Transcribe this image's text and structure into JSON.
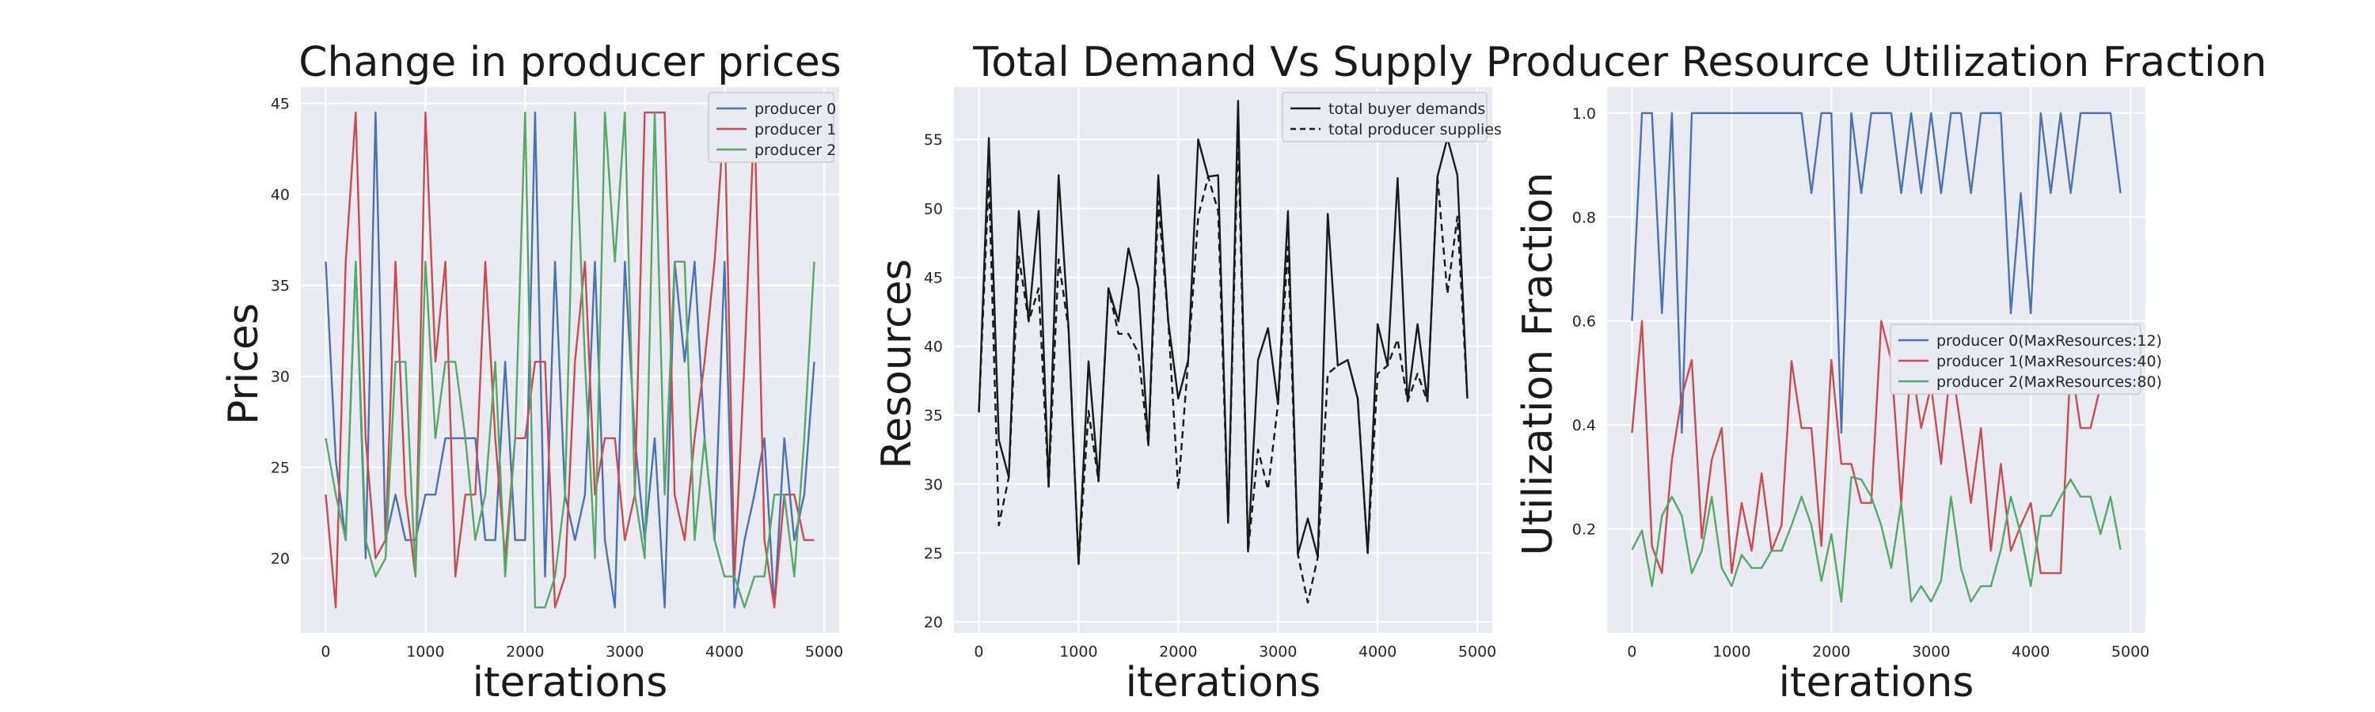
{
  "chart_data": [
    {
      "type": "line",
      "title": "Change in producer prices",
      "xlabel": "iterations",
      "ylabel": "Prices",
      "xlim": [
        -250,
        5150
      ],
      "ylim": [
        15.9,
        45.9
      ],
      "xticks": [
        0,
        1000,
        2000,
        3000,
        4000,
        5000
      ],
      "yticks": [
        20,
        25,
        30,
        35,
        40,
        45
      ],
      "grid": true,
      "legend_position": "top-right",
      "x": [
        0,
        100,
        200,
        300,
        400,
        500,
        600,
        700,
        800,
        900,
        1000,
        1100,
        1200,
        1300,
        1400,
        1500,
        1600,
        1700,
        1800,
        1900,
        2000,
        2100,
        2200,
        2300,
        2400,
        2500,
        2600,
        2700,
        2800,
        2900,
        3000,
        3100,
        3200,
        3300,
        3400,
        3500,
        3600,
        3700,
        3800,
        3900,
        4000,
        4100,
        4200,
        4300,
        4400,
        4500,
        4600,
        4700,
        4800,
        4900
      ],
      "series": [
        {
          "name": "producer 0",
          "color": "#4c72b0",
          "values": [
            36.3,
            25.4,
            21.0,
            36.3,
            20.0,
            44.5,
            21.0,
            23.5,
            21.0,
            21.0,
            23.5,
            23.5,
            26.6,
            26.6,
            26.6,
            26.6,
            21.0,
            21.0,
            30.8,
            21.0,
            21.0,
            44.5,
            19.0,
            36.3,
            23.5,
            21.0,
            23.5,
            36.3,
            21.0,
            17.3,
            36.3,
            26.6,
            21.0,
            26.6,
            17.3,
            36.3,
            30.8,
            36.3,
            26.6,
            21.0,
            36.3,
            17.3,
            21.0,
            23.5,
            26.6,
            17.3,
            26.6,
            21.0,
            23.5,
            30.8
          ]
        },
        {
          "name": "producer 1",
          "color": "#c44e52",
          "values": [
            23.5,
            17.3,
            36.3,
            44.5,
            26.6,
            20.0,
            21.0,
            36.3,
            23.5,
            19.0,
            44.5,
            30.8,
            36.3,
            19.0,
            23.5,
            23.5,
            36.3,
            26.6,
            20.0,
            26.6,
            26.6,
            30.8,
            30.8,
            17.3,
            19.0,
            30.8,
            36.3,
            23.5,
            26.6,
            26.6,
            21.0,
            23.5,
            44.5,
            44.5,
            44.5,
            23.5,
            21.0,
            26.6,
            30.8,
            36.3,
            44.5,
            19.0,
            30.8,
            44.5,
            21.0,
            17.3,
            23.5,
            23.5,
            21.0,
            21.0
          ]
        },
        {
          "name": "producer 2",
          "color": "#55a868",
          "values": [
            26.6,
            23.5,
            21.0,
            36.3,
            21.0,
            19.0,
            20.0,
            30.8,
            30.8,
            19.0,
            36.3,
            26.6,
            30.8,
            30.8,
            26.6,
            21.0,
            23.5,
            30.8,
            19.0,
            26.6,
            44.5,
            17.3,
            17.3,
            19.0,
            23.5,
            44.5,
            30.8,
            20.0,
            44.5,
            36.3,
            44.5,
            23.5,
            20.0,
            44.5,
            23.5,
            36.3,
            36.3,
            21.0,
            26.6,
            21.0,
            19.0,
            19.0,
            17.3,
            19.0,
            19.0,
            23.5,
            23.5,
            19.0,
            26.6,
            36.3
          ]
        }
      ]
    },
    {
      "type": "line",
      "title": "Total Demand Vs Supply",
      "xlabel": "iterations",
      "ylabel": "Resources",
      "xlim": [
        -250,
        5150
      ],
      "ylim": [
        19.2,
        58.8
      ],
      "xticks": [
        0,
        1000,
        2000,
        3000,
        4000,
        5000
      ],
      "yticks": [
        20,
        25,
        30,
        35,
        40,
        45,
        50,
        55
      ],
      "grid": true,
      "legend_position": "top-right",
      "x": [
        0,
        100,
        200,
        300,
        400,
        500,
        600,
        700,
        800,
        900,
        1000,
        1100,
        1200,
        1300,
        1400,
        1500,
        1600,
        1700,
        1800,
        1900,
        2000,
        2100,
        2200,
        2300,
        2400,
        2500,
        2600,
        2700,
        2800,
        2900,
        3000,
        3100,
        3200,
        3300,
        3400,
        3500,
        3600,
        3700,
        3800,
        3900,
        4000,
        4100,
        4200,
        4300,
        4400,
        4500,
        4600,
        4700,
        4800,
        4900
      ],
      "series": [
        {
          "name": "total buyer demands",
          "color": "#1a1a1a",
          "style": "solid",
          "values": [
            35.2,
            55.1,
            33.2,
            30.5,
            49.8,
            41.8,
            49.8,
            29.8,
            52.4,
            41.2,
            24.2,
            38.9,
            30.2,
            44.2,
            41.8,
            47.1,
            44.2,
            32.8,
            52.4,
            41.8,
            36.2,
            39.0,
            55.0,
            52.3,
            52.4,
            27.2,
            57.8,
            25.1,
            39.0,
            41.3,
            35.8,
            49.8,
            24.9,
            27.5,
            24.7,
            49.6,
            38.6,
            39.0,
            36.2,
            25.0,
            41.6,
            38.6,
            52.2,
            36.0,
            41.6,
            36.0,
            52.3,
            55.1,
            52.4,
            36.2
          ]
        },
        {
          "name": "total producer supplies",
          "color": "#1a1a1a",
          "style": "dashed",
          "values": [
            35.2,
            52.3,
            27.0,
            30.5,
            46.5,
            41.8,
            44.2,
            29.8,
            46.3,
            41.2,
            24.2,
            35.3,
            30.2,
            44.2,
            40.9,
            40.9,
            39.5,
            32.8,
            50.5,
            41.8,
            29.6,
            39.0,
            49.4,
            52.3,
            49.8,
            27.2,
            55.5,
            25.1,
            32.5,
            29.6,
            35.8,
            47.2,
            24.9,
            21.4,
            24.7,
            38.0,
            38.6,
            39.0,
            36.2,
            25.0,
            38.0,
            38.6,
            40.5,
            36.0,
            38.0,
            36.0,
            52.3,
            43.8,
            49.4,
            36.2
          ]
        }
      ]
    },
    {
      "type": "line",
      "title": "Producer Resource Utilization Fraction",
      "xlabel": "iterations",
      "ylabel": "Utilization Fraction",
      "xlim": [
        -250,
        5150
      ],
      "ylim": [
        0.0,
        1.05
      ],
      "xticks": [
        0,
        1000,
        2000,
        3000,
        4000,
        5000
      ],
      "yticks": [
        0.2,
        0.4,
        0.6,
        0.8,
        1.0
      ],
      "grid": true,
      "legend_position": "center-right",
      "x": [
        0,
        100,
        200,
        300,
        400,
        500,
        600,
        700,
        800,
        900,
        1000,
        1100,
        1200,
        1300,
        1400,
        1500,
        1600,
        1700,
        1800,
        1900,
        2000,
        2100,
        2200,
        2300,
        2400,
        2500,
        2600,
        2700,
        2800,
        2900,
        3000,
        3100,
        3200,
        3300,
        3400,
        3500,
        3600,
        3700,
        3800,
        3900,
        4000,
        4100,
        4200,
        4300,
        4400,
        4500,
        4600,
        4700,
        4800,
        4900
      ],
      "series": [
        {
          "name": "producer 0(MaxResources:12)",
          "color": "#4c72b0",
          "values": [
            0.6,
            1.0,
            1.0,
            0.615,
            1.0,
            0.385,
            1.0,
            1.0,
            1.0,
            1.0,
            1.0,
            1.0,
            1.0,
            1.0,
            1.0,
            1.0,
            1.0,
            1.0,
            0.846,
            1.0,
            1.0,
            0.385,
            1.0,
            0.846,
            1.0,
            1.0,
            1.0,
            0.846,
            1.0,
            0.846,
            1.0,
            0.846,
            1.0,
            1.0,
            0.846,
            1.0,
            1.0,
            1.0,
            0.615,
            0.846,
            0.615,
            1.0,
            0.846,
            1.0,
            0.846,
            1.0,
            1.0,
            1.0,
            1.0,
            0.846
          ]
        },
        {
          "name": "producer 1(MaxResources:40)",
          "color": "#c44e52",
          "values": [
            0.385,
            0.6,
            0.167,
            0.115,
            0.333,
            0.455,
            0.525,
            0.182,
            0.333,
            0.394,
            0.115,
            0.25,
            0.158,
            0.307,
            0.158,
            0.207,
            0.523,
            0.394,
            0.394,
            0.167,
            0.525,
            0.325,
            0.325,
            0.25,
            0.25,
            0.6,
            0.525,
            0.25,
            0.525,
            0.394,
            0.475,
            0.325,
            0.525,
            0.394,
            0.25,
            0.394,
            0.158,
            0.325,
            0.158,
            0.207,
            0.25,
            0.115,
            0.115,
            0.115,
            0.525,
            0.394,
            0.394,
            0.475,
            0.475,
            0.475
          ]
        },
        {
          "name": "producer 2(MaxResources:80)",
          "color": "#55a868",
          "values": [
            0.16,
            0.197,
            0.09,
            0.225,
            0.262,
            0.225,
            0.115,
            0.158,
            0.262,
            0.125,
            0.09,
            0.15,
            0.125,
            0.125,
            0.158,
            0.158,
            0.207,
            0.262,
            0.207,
            0.1,
            0.19,
            0.06,
            0.3,
            0.295,
            0.262,
            0.207,
            0.125,
            0.25,
            0.06,
            0.09,
            0.06,
            0.1,
            0.262,
            0.125,
            0.06,
            0.09,
            0.09,
            0.16,
            0.262,
            0.19,
            0.09,
            0.225,
            0.225,
            0.262,
            0.295,
            0.262,
            0.262,
            0.19,
            0.262,
            0.16
          ]
        }
      ]
    }
  ]
}
